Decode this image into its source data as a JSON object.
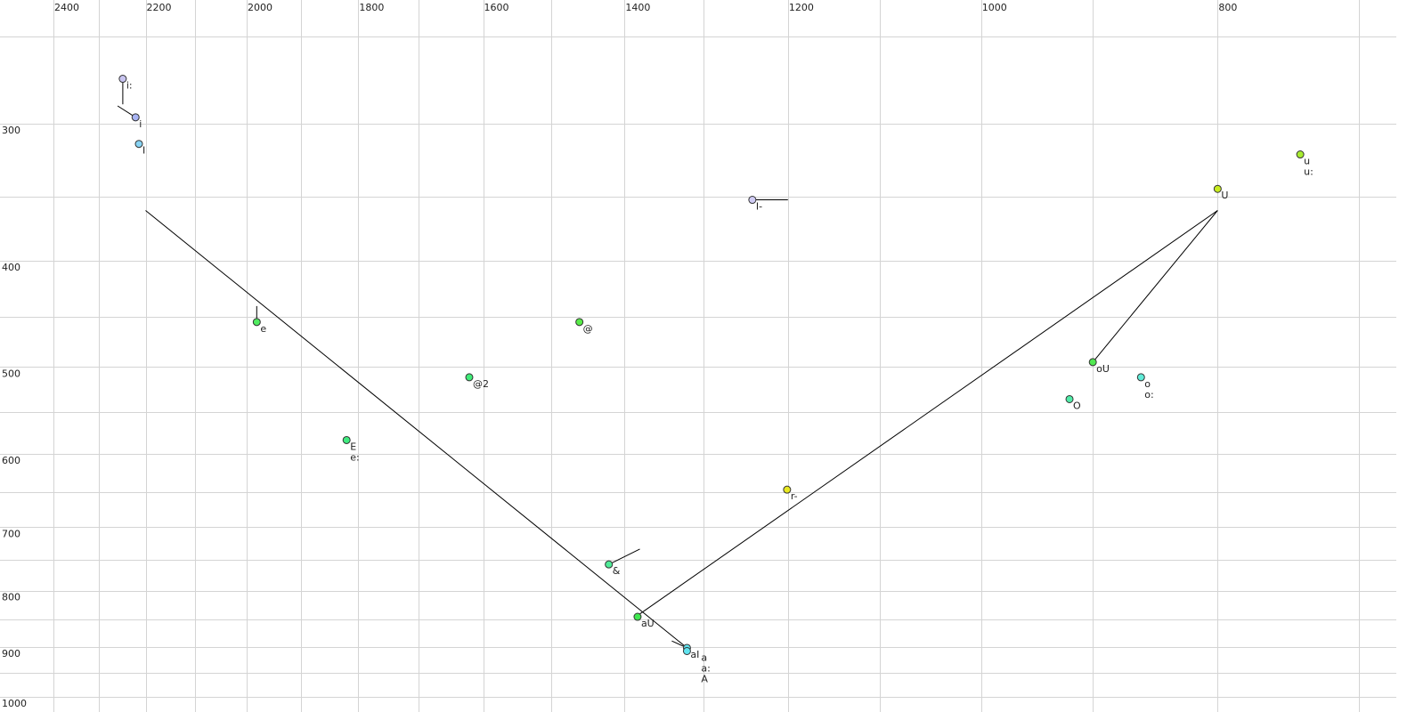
{
  "chart_data": {
    "type": "scatter",
    "title": "",
    "xlabel": "",
    "ylabel": "",
    "x_scale": "log",
    "y_scale": "log",
    "x_reversed": true,
    "x_axis_position": "top",
    "xlim": [
      2524,
      676
    ],
    "ylim": [
      250,
      1030
    ],
    "grid": true,
    "x_ticks": [
      2400,
      2200,
      2000,
      1800,
      1600,
      1400,
      1200,
      1000,
      800
    ],
    "x_minor_grid": [
      2300,
      2100,
      1900,
      1700,
      1500,
      1300,
      1100,
      900,
      700
    ],
    "y_ticks": [
      300,
      400,
      500,
      600,
      700,
      800,
      900,
      1000
    ],
    "y_minor_grid": [
      250,
      350,
      450,
      550,
      650,
      750,
      850,
      950
    ],
    "points": [
      {
        "labels": [
          "i:"
        ],
        "x": 2248,
        "y": 273,
        "color": "#c8c4f0"
      },
      {
        "labels": [
          "i"
        ],
        "x": 2221,
        "y": 296,
        "color": "#a8b4f4"
      },
      {
        "labels": [
          "I"
        ],
        "x": 2214,
        "y": 313,
        "color": "#88d4f4"
      },
      {
        "labels": [
          "I-"
        ],
        "x": 1241,
        "y": 352,
        "color": "#d0ccf4"
      },
      {
        "labels": [
          "U"
        ],
        "x": 800,
        "y": 344,
        "color": "#c8ec20"
      },
      {
        "labels": [
          "u",
          "u:"
        ],
        "x": 740,
        "y": 320,
        "color": "#a8ec30"
      },
      {
        "labels": [
          "e"
        ],
        "x": 1981,
        "y": 455,
        "color": "#50ec60"
      },
      {
        "labels": [
          "@"
        ],
        "x": 1461,
        "y": 455,
        "color": "#58ec48"
      },
      {
        "labels": [
          "@2"
        ],
        "x": 1621,
        "y": 511,
        "color": "#40ec78"
      },
      {
        "labels": [
          "E",
          "e:"
        ],
        "x": 1820,
        "y": 583,
        "color": "#40ec80"
      },
      {
        "labels": [
          "oU"
        ],
        "x": 900,
        "y": 495,
        "color": "#50e850"
      },
      {
        "labels": [
          "o",
          "o:"
        ],
        "x": 860,
        "y": 511,
        "color": "#60ecd8"
      },
      {
        "labels": [
          "O"
        ],
        "x": 920,
        "y": 535,
        "color": "#50eca8"
      },
      {
        "labels": [
          "r-"
        ],
        "x": 1201,
        "y": 647,
        "color": "#e8e820"
      },
      {
        "labels": [
          "&"
        ],
        "x": 1421,
        "y": 757,
        "color": "#50ec98"
      },
      {
        "labels": [
          "aU"
        ],
        "x": 1383,
        "y": 845,
        "color": "#40e850"
      },
      {
        "labels": [
          "aI"
        ],
        "x": 1320,
        "y": 902,
        "color": "#60e4f0"
      },
      {
        "labels": [
          "a",
          "a:",
          "A"
        ],
        "x": 1320,
        "y": 908,
        "color": "#60e4f0"
      }
    ],
    "trajectories": [
      [
        [
          2248,
          273
        ],
        [
          2248,
          288
        ]
      ],
      [
        [
          2259,
          289
        ],
        [
          2221,
          296
        ]
      ],
      [
        [
          1241,
          352
        ],
        [
          1200,
          352
        ]
      ],
      [
        [
          1981,
          455
        ],
        [
          1981,
          440
        ]
      ],
      [
        [
          1421,
          757
        ],
        [
          1380,
          733
        ]
      ],
      [
        [
          2200,
          360
        ],
        [
          1320,
          902
        ]
      ],
      [
        [
          1380,
          840
        ],
        [
          800,
          360
        ]
      ],
      [
        [
          900,
          495
        ],
        [
          800,
          360
        ]
      ],
      [
        [
          1339,
          889
        ],
        [
          1320,
          902
        ]
      ]
    ],
    "colors": {
      "grid": "#d4d4d4",
      "line": "#000000",
      "marker_edge": "#333333"
    }
  }
}
